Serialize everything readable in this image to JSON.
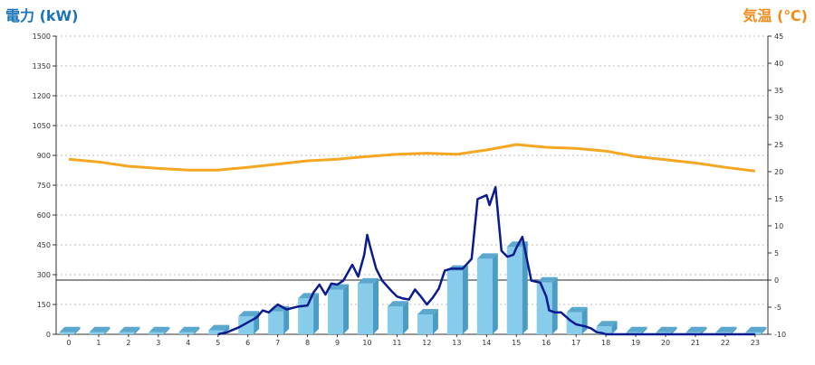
{
  "chart_data": {
    "type": "bar",
    "left_axis": {
      "label": "電力 (kW)",
      "min": 0,
      "max": 1500,
      "ticks": [
        0,
        150,
        300,
        450,
        600,
        750,
        900,
        1050,
        1200,
        1350,
        1500
      ]
    },
    "right_axis": {
      "label": "気温 (℃)",
      "min": -10,
      "max": 45,
      "ticks": [
        -10,
        -5,
        0,
        5,
        10,
        15,
        20,
        25,
        30,
        35,
        40,
        45
      ]
    },
    "categories": [
      "0",
      "1",
      "2",
      "3",
      "4",
      "5",
      "6",
      "7",
      "8",
      "9",
      "10",
      "11",
      "12",
      "13",
      "14",
      "15",
      "16",
      "17",
      "18",
      "19",
      "20",
      "21",
      "22",
      "23"
    ],
    "series": [
      {
        "kind": "bar",
        "axis": "left",
        "values": [
          10,
          10,
          10,
          10,
          10,
          20,
          90,
          115,
          180,
          225,
          255,
          140,
          100,
          320,
          380,
          440,
          260,
          110,
          40,
          10,
          10,
          10,
          10,
          10
        ]
      },
      {
        "kind": "line",
        "axis": "left",
        "x": [
          5,
          5.3,
          5.7,
          6,
          6.3,
          6.5,
          6.7,
          7,
          7.3,
          7.7,
          8,
          8.2,
          8.4,
          8.6,
          8.8,
          9,
          9.2,
          9.5,
          9.7,
          9.9,
          10,
          10.1,
          10.3,
          10.5,
          10.8,
          11,
          11.2,
          11.4,
          11.6,
          11.8,
          12,
          12.2,
          12.4,
          12.6,
          12.8,
          13,
          13.2,
          13.5,
          13.7,
          14,
          14.1,
          14.3,
          14.5,
          14.7,
          14.9,
          15,
          15.2,
          15.5,
          15.8,
          16,
          16.1,
          16.3,
          16.5,
          16.8,
          17,
          17.3,
          17.5,
          17.7,
          17.9,
          18,
          18.3,
          18.6,
          18.9,
          19.5,
          20,
          21,
          22,
          23
        ],
        "y": [
          0,
          10,
          35,
          60,
          85,
          120,
          110,
          150,
          125,
          140,
          145,
          210,
          250,
          200,
          255,
          250,
          270,
          350,
          290,
          400,
          500,
          440,
          330,
          270,
          220,
          190,
          180,
          175,
          225,
          190,
          150,
          185,
          230,
          320,
          330,
          330,
          330,
          380,
          680,
          700,
          650,
          740,
          420,
          390,
          400,
          435,
          490,
          270,
          260,
          190,
          120,
          110,
          110,
          70,
          50,
          40,
          30,
          10,
          5,
          0,
          0,
          0,
          0,
          0,
          0,
          0,
          0,
          0
        ]
      },
      {
        "kind": "line",
        "axis": "right",
        "x": [
          0,
          1,
          2,
          3,
          4,
          5,
          6,
          7,
          8,
          9,
          10,
          11,
          12,
          13,
          14,
          14.5,
          15,
          16,
          17,
          18,
          19,
          20,
          21,
          22,
          23
        ],
        "y": [
          22.3,
          21.8,
          21.0,
          20.6,
          20.3,
          20.3,
          20.8,
          21.4,
          22.0,
          22.3,
          22.8,
          23.2,
          23.4,
          23.2,
          24.0,
          24.5,
          25.0,
          24.5,
          24.3,
          23.8,
          22.8,
          22.2,
          21.6,
          20.8,
          20.1
        ]
      }
    ],
    "colors": {
      "bar": "#87cdeb",
      "bar_side": "#4a9cc4",
      "bar_top": "#5ba8cf",
      "power_line": "#0b1b8f",
      "temp_line": "#f5a623",
      "left_label": "#1a73b8",
      "right_label": "#f28b1a"
    },
    "grid": true
  }
}
